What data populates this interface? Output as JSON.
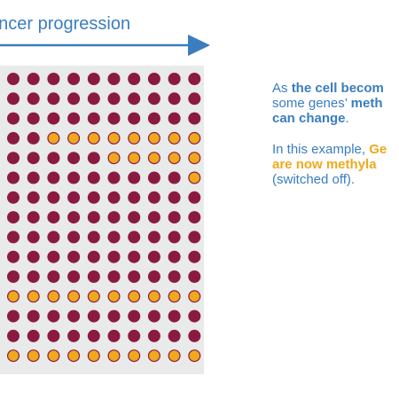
{
  "colors": {
    "accent": "#3a7dc0",
    "panel": "#e9eaea",
    "dot_unmethylated": "#8b1a42",
    "dot_methylated_fill": "#f0a81d",
    "dot_methylated_stroke": "#8b1a42",
    "highlight_text": "#f0a81d"
  },
  "header": {
    "label": "ancer progression",
    "arrow_icon": "arrow-right-icon"
  },
  "grid": {
    "columns": 10,
    "rows": 15,
    "methylated_cells": [
      [
        3,
        2
      ],
      [
        3,
        3
      ],
      [
        3,
        4
      ],
      [
        3,
        5
      ],
      [
        3,
        6
      ],
      [
        3,
        7
      ],
      [
        3,
        8
      ],
      [
        3,
        9
      ],
      [
        4,
        5
      ],
      [
        4,
        6
      ],
      [
        4,
        7
      ],
      [
        4,
        8
      ],
      [
        4,
        9
      ],
      [
        5,
        9
      ],
      [
        11,
        0
      ],
      [
        11,
        1
      ],
      [
        11,
        2
      ],
      [
        11,
        3
      ],
      [
        11,
        4
      ],
      [
        11,
        5
      ],
      [
        11,
        6
      ],
      [
        11,
        7
      ],
      [
        11,
        8
      ],
      [
        11,
        9
      ],
      [
        14,
        0
      ],
      [
        14,
        1
      ],
      [
        14,
        2
      ],
      [
        14,
        3
      ],
      [
        14,
        4
      ],
      [
        14,
        5
      ],
      [
        14,
        6
      ],
      [
        14,
        7
      ],
      [
        14,
        8
      ],
      [
        14,
        9
      ]
    ]
  },
  "text": {
    "p1_line1_a": "As ",
    "p1_line1_b": "the cell becom",
    "p1_line2_a": "some genes’ ",
    "p1_line2_b": "meth",
    "p1_line3": "can change",
    "p1_line3_end": ".",
    "p2_line1_a": "In this example, ",
    "p2_line1_b": "Ge",
    "p2_line2": "are now methyla",
    "p2_line3": "(switched off)."
  }
}
